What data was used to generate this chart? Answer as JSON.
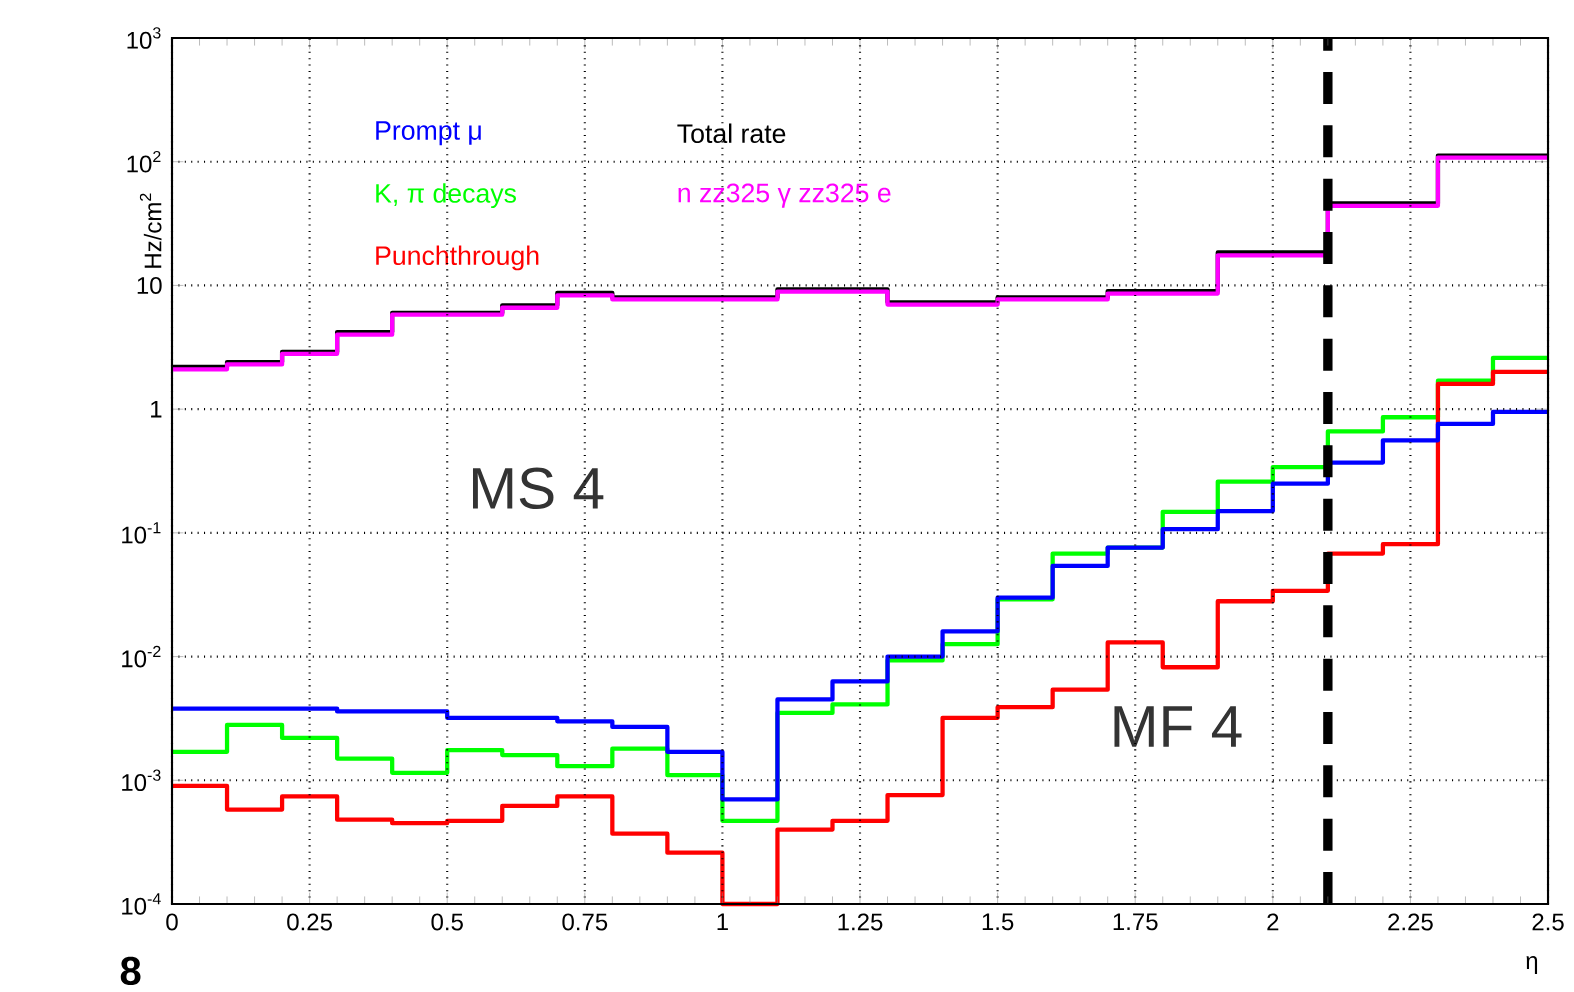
{
  "chart_data": {
    "type": "histogram",
    "xlabel": "η",
    "ylabel": "Hz/cm$^{2}$",
    "bins": [
      0,
      0.1,
      0.2,
      0.3,
      0.4,
      0.5,
      0.6,
      0.7,
      0.8,
      0.9,
      1.0,
      1.1,
      1.2,
      1.3,
      1.4,
      1.5,
      1.6,
      1.7,
      1.8,
      1.9,
      2.0,
      2.1,
      2.2,
      2.3,
      2.4,
      2.5
    ],
    "series": [
      {
        "name": "Total rate",
        "color": "#000000",
        "values": [
          2.2,
          2.4,
          2.9,
          4.2,
          6.0,
          6.0,
          6.9,
          8.7,
          8.0,
          8.0,
          8.0,
          9.3,
          9.3,
          7.3,
          7.3,
          8.0,
          8.0,
          9.0,
          9.0,
          18.5,
          18.5,
          46,
          46,
          112,
          112
        ]
      },
      {
        "name": "n zz325 γ zz325 e",
        "color": "#ff00ff",
        "values": [
          2.1,
          2.3,
          2.8,
          4.0,
          5.8,
          5.8,
          6.6,
          8.3,
          7.7,
          7.7,
          7.7,
          8.9,
          8.9,
          7.0,
          7.0,
          7.7,
          7.7,
          8.6,
          8.6,
          17.5,
          17.5,
          44,
          44,
          108,
          108
        ]
      },
      {
        "name": "K, π decays",
        "color": "#00ff00",
        "values": [
          0.0017,
          0.0028,
          0.0022,
          0.0015,
          0.00115,
          0.00175,
          0.0016,
          0.0013,
          0.0018,
          0.0011,
          0.00047,
          0.0035,
          0.0041,
          0.0093,
          0.0126,
          0.029,
          0.068,
          0.076,
          0.148,
          0.26,
          0.34,
          0.66,
          0.86,
          1.7,
          2.6
        ]
      },
      {
        "name": "Punchthrough",
        "color": "#ff0000",
        "values": [
          0.0009,
          0.00058,
          0.00074,
          0.00048,
          0.00045,
          0.00047,
          0.00062,
          0.00074,
          0.00037,
          0.00026,
          0.0001,
          0.0004,
          0.00047,
          0.00076,
          0.0032,
          0.0039,
          0.0054,
          0.013,
          0.0082,
          0.028,
          0.034,
          0.068,
          0.081,
          1.6,
          2.0
        ]
      },
      {
        "name": "Prompt μ",
        "color": "#0000ff",
        "values": [
          0.0038,
          0.0038,
          0.0038,
          0.0036,
          0.0036,
          0.0032,
          0.0032,
          0.003,
          0.0027,
          0.0017,
          0.0007,
          0.0045,
          0.0063,
          0.01,
          0.016,
          0.03,
          0.054,
          0.076,
          0.107,
          0.15,
          0.25,
          0.37,
          0.56,
          0.76,
          0.95
        ]
      }
    ],
    "xlim": [
      0,
      2.5
    ],
    "ylim": [
      0.0001,
      1000
    ],
    "log": "y",
    "xticks": [
      0,
      0.25,
      0.5,
      0.75,
      1,
      1.25,
      1.5,
      1.75,
      2,
      2.25,
      2.5
    ],
    "yticks": [
      {
        "value": 0.0001,
        "label": "10$^{-4}$"
      },
      {
        "value": 0.001,
        "label": "10$^{-3}$"
      },
      {
        "value": 0.01,
        "label": "10$^{-2}$"
      },
      {
        "value": 0.1,
        "label": "10$^{-1}$"
      },
      1,
      10,
      {
        "value": 100,
        "label": "10$^{2}$"
      },
      {
        "value": 1000,
        "label": "10$^{3}$"
      }
    ],
    "grid": true,
    "legend": "top",
    "line_style": "solid",
    "ref_lines": [
      {
        "axis": "x",
        "value": 2.1,
        "color": "#000000",
        "line_style": "dashed"
      }
    ],
    "annotations": [
      "MS 4",
      "MF 4",
      "8"
    ]
  }
}
